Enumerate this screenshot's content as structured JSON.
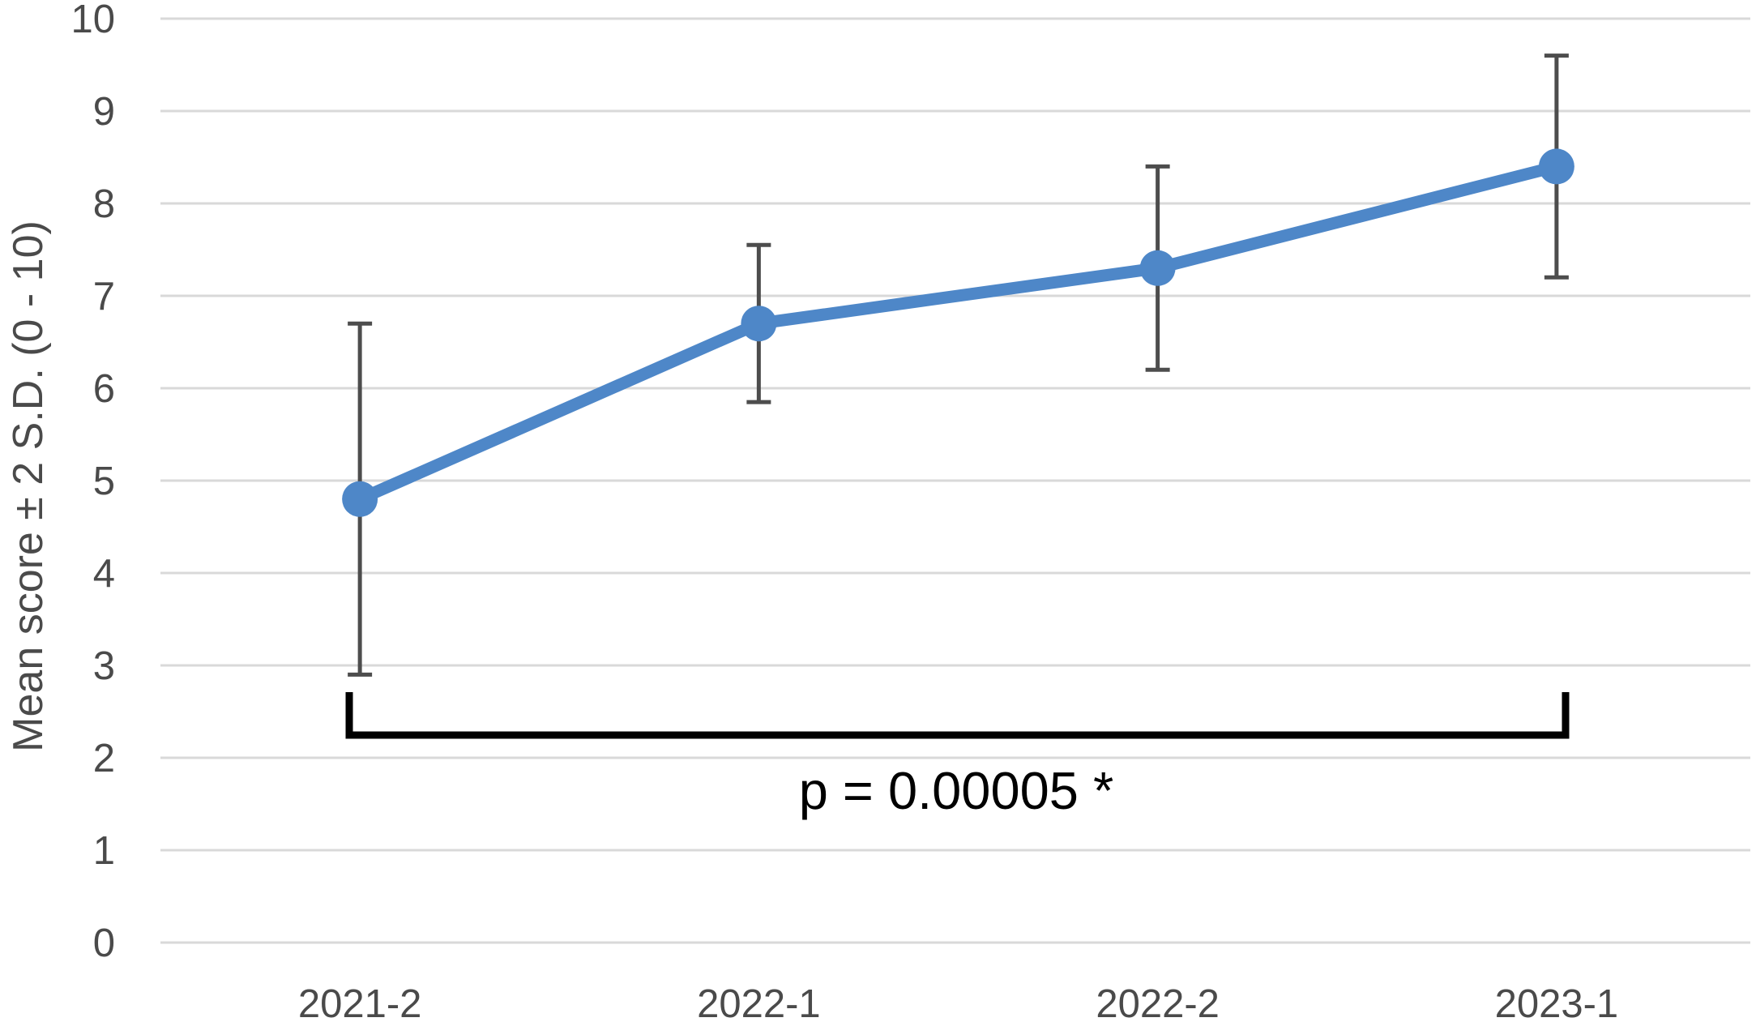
{
  "chart_data": {
    "type": "line",
    "title": "",
    "xlabel": "",
    "ylabel": "Mean score ± 2 S.D. (0 - 10)",
    "categories": [
      "2021-2",
      "2022-1",
      "2022-2",
      "2023-1"
    ],
    "series": [
      {
        "name": "Mean score",
        "values": [
          4.8,
          6.7,
          7.3,
          8.4
        ],
        "error_low": [
          2.9,
          5.85,
          6.2,
          7.2
        ],
        "error_high": [
          6.7,
          7.55,
          8.4,
          9.6
        ]
      }
    ],
    "ylim": [
      0,
      10
    ],
    "yticks": [
      0,
      1,
      2,
      3,
      4,
      5,
      6,
      7,
      8,
      9,
      10
    ],
    "grid": true,
    "legend": false,
    "annotation": {
      "text": "p = 0.00005 *",
      "from_category": "2021-2",
      "to_category": "2023-1"
    },
    "colors": {
      "line": "#4E87C8",
      "marker": "#4E87C8",
      "error_bar": "#4D4D4D",
      "gridline": "#D9D9D9",
      "tick_label": "#4A4A4A",
      "axis_title": "#4A4A4A",
      "bracket": "#000000",
      "annotation_text": "#000000",
      "background": "#FFFFFF"
    }
  }
}
